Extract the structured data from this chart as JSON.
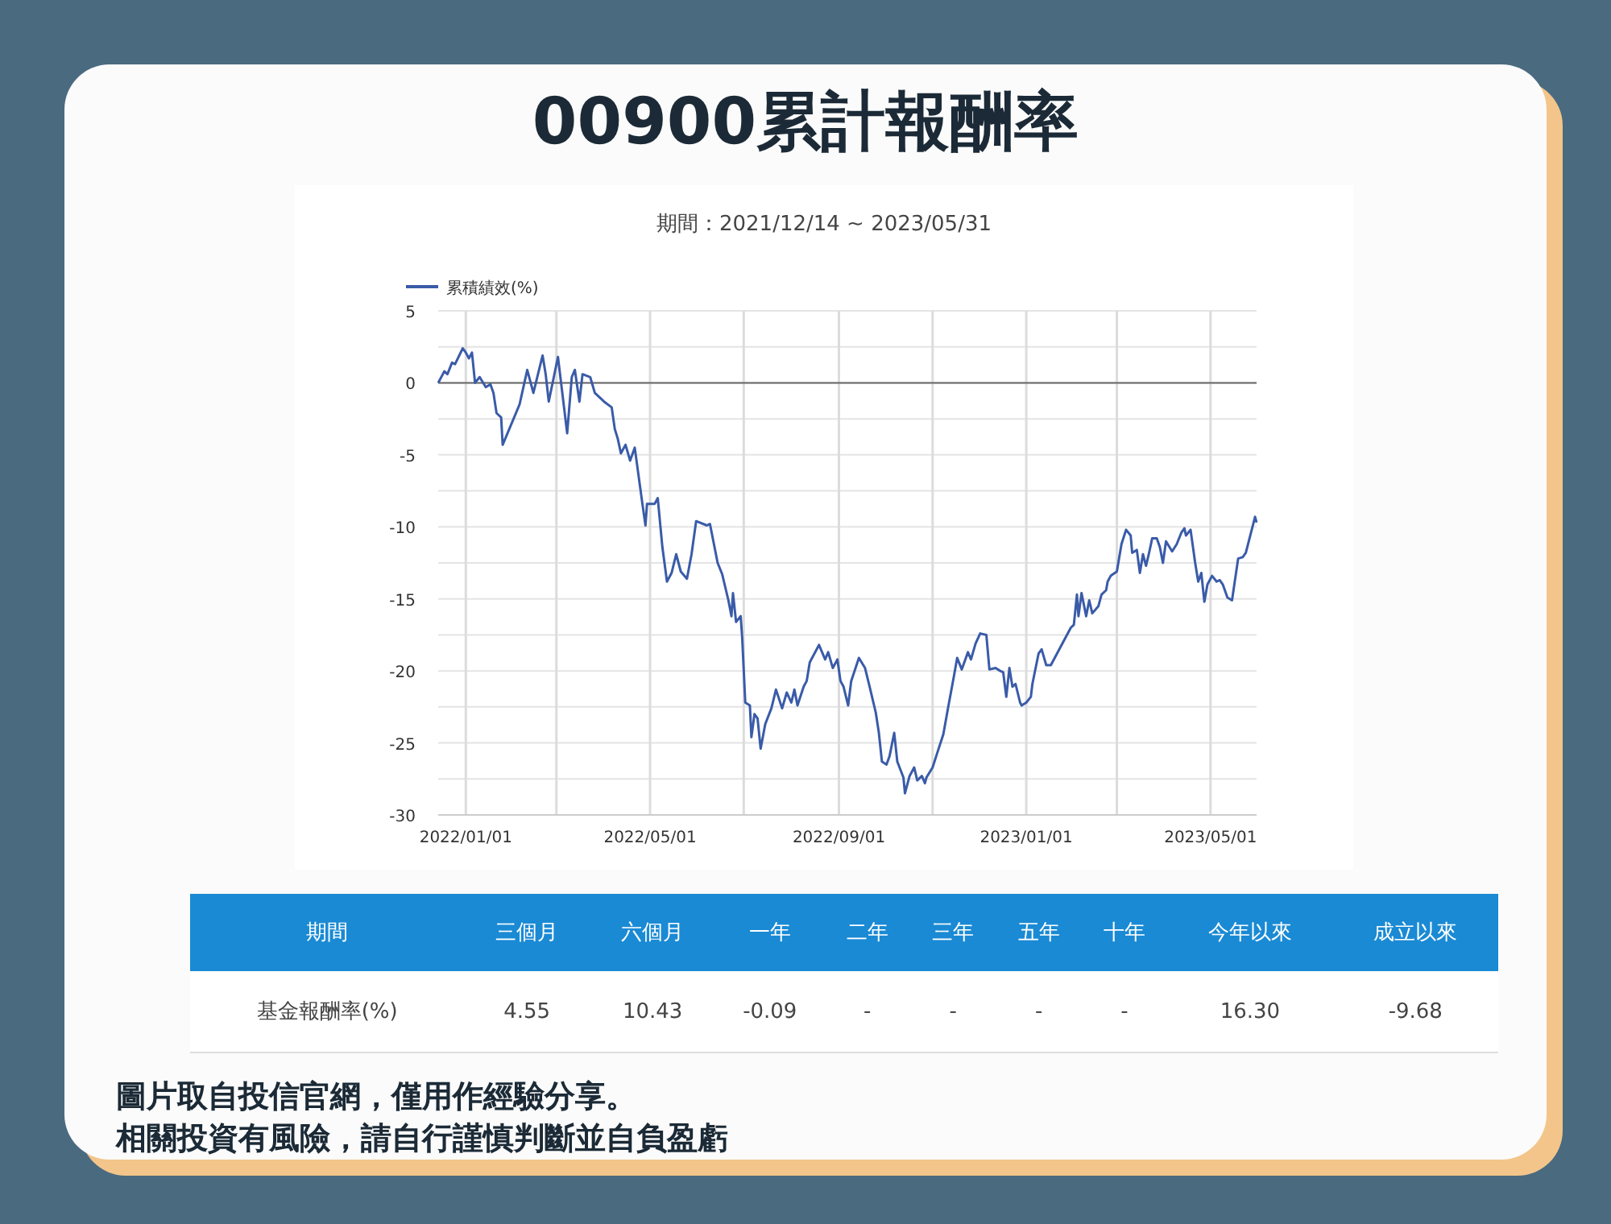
{
  "chart_data": [
    {
      "type": "line",
      "title": "00900累計報酬率",
      "subtitle": "期間：2021/12/14 ~ 2023/05/31",
      "annotations": [
        "圖片取自投信官網，僅用作經驗分享。",
        "相關投資有風險，請自行謹慎判斷並自負盈虧"
      ],
      "legend": "top left",
      "grid": true,
      "xlim": [
        "2021-12-14",
        "2023-05-31"
      ],
      "xticks": [
        {
          "value": "2022-01-01",
          "label": "2022/01/01"
        },
        {
          "value": "2022-03-01",
          "label": null
        },
        {
          "value": "2022-05-01",
          "label": "2022/05/01"
        },
        {
          "value": "2022-07-01",
          "label": null
        },
        {
          "value": "2022-09-01",
          "label": "2022/09/01"
        },
        {
          "value": "2022-11-01",
          "label": null
        },
        {
          "value": "2023-01-01",
          "label": "2023/01/01"
        },
        {
          "value": "2023-03-01",
          "label": null
        },
        {
          "value": "2023-05-01",
          "label": "2023/05/01"
        }
      ],
      "ylim": [
        -30,
        5
      ],
      "yticks": [
        -30,
        {
          "value": -27.5,
          "label": null
        },
        -25,
        {
          "value": -22.5,
          "label": null
        },
        -20,
        {
          "value": -17.5,
          "label": null
        },
        -15,
        {
          "value": -12.5,
          "label": null
        },
        -10,
        {
          "value": -7.5,
          "label": null
        },
        -5,
        {
          "value": -2.5,
          "label": null
        },
        0,
        {
          "value": 2.5,
          "label": null
        },
        5
      ],
      "ref_lines": [
        {
          "axis": "y",
          "value": 0,
          "color": "#666666"
        }
      ],
      "x": [
        "2021-12-14",
        "2021-12-18",
        "2021-12-20",
        "2021-12-23",
        "2021-12-25",
        "2021-12-30",
        "2022-01-01",
        "2022-01-03",
        "2022-01-05",
        "2022-01-07",
        "2022-01-10",
        "2022-01-14",
        "2022-01-17",
        "2022-01-19",
        "2022-01-21",
        "2022-01-24",
        "2022-01-25",
        "2022-02-05",
        "2022-02-10",
        "2022-02-14",
        "2022-02-20",
        "2022-02-22",
        "2022-02-24",
        "2022-03-02",
        "2022-03-08",
        "2022-03-11",
        "2022-03-13",
        "2022-03-16",
        "2022-03-18",
        "2022-03-23",
        "2022-03-26",
        "2022-04-01",
        "2022-04-06",
        "2022-04-08",
        "2022-04-10",
        "2022-04-12",
        "2022-04-15",
        "2022-04-18",
        "2022-04-21",
        "2022-04-26",
        "2022-04-28",
        "2022-04-29",
        "2022-05-04",
        "2022-05-06",
        "2022-05-09",
        "2022-05-12",
        "2022-05-15",
        "2022-05-18",
        "2022-05-21",
        "2022-05-25",
        "2022-05-28",
        "2022-05-31",
        "2022-06-07",
        "2022-06-09",
        "2022-06-14",
        "2022-06-17",
        "2022-06-21",
        "2022-06-23",
        "2022-06-24",
        "2022-06-26",
        "2022-06-29",
        "2022-06-30",
        "2022-07-02",
        "2022-07-05",
        "2022-07-06",
        "2022-07-08",
        "2022-07-10",
        "2022-07-12",
        "2022-07-15",
        "2022-07-19",
        "2022-07-22",
        "2022-07-26",
        "2022-07-29",
        "2022-08-01",
        "2022-08-03",
        "2022-08-05",
        "2022-08-09",
        "2022-08-11",
        "2022-08-13",
        "2022-08-19",
        "2022-08-23",
        "2022-08-25",
        "2022-08-28",
        "2022-08-31",
        "2022-09-02",
        "2022-09-04",
        "2022-09-07",
        "2022-09-09",
        "2022-09-14",
        "2022-09-18",
        "2022-09-21",
        "2022-09-25",
        "2022-09-27",
        "2022-09-29",
        "2022-10-02",
        "2022-10-04",
        "2022-10-07",
        "2022-10-09",
        "2022-10-13",
        "2022-10-14",
        "2022-10-17",
        "2022-10-20",
        "2022-10-22",
        "2022-10-25",
        "2022-10-27",
        "2022-10-28",
        "2022-11-01",
        "2022-11-04",
        "2022-11-08",
        "2022-11-11",
        "2022-11-15",
        "2022-11-17",
        "2022-11-20",
        "2022-11-24",
        "2022-11-26",
        "2022-11-29",
        "2022-12-02",
        "2022-12-06",
        "2022-12-08",
        "2022-12-12",
        "2022-12-15",
        "2022-12-17",
        "2022-12-19",
        "2022-12-21",
        "2022-12-23",
        "2022-12-25",
        "2022-12-28",
        "2022-12-29",
        "2023-01-01",
        "2023-01-04",
        "2023-01-05",
        "2023-01-09",
        "2023-01-11",
        "2023-01-14",
        "2023-01-17",
        "2023-01-30",
        "2023-02-01",
        "2023-02-03",
        "2023-02-04",
        "2023-02-06",
        "2023-02-09",
        "2023-02-11",
        "2023-02-13",
        "2023-02-17",
        "2023-02-19",
        "2023-02-22",
        "2023-02-23",
        "2023-02-25",
        "2023-03-01",
        "2023-03-04",
        "2023-03-07",
        "2023-03-10",
        "2023-03-11",
        "2023-03-14",
        "2023-03-16",
        "2023-03-18",
        "2023-03-20",
        "2023-03-22",
        "2023-03-24",
        "2023-03-27",
        "2023-03-29",
        "2023-03-31",
        "2023-04-02",
        "2023-04-06",
        "2023-04-09",
        "2023-04-12",
        "2023-04-14",
        "2023-04-15",
        "2023-04-18",
        "2023-04-21",
        "2023-04-23",
        "2023-04-25",
        "2023-04-27",
        "2023-04-29",
        "2023-05-02",
        "2023-05-05",
        "2023-05-07",
        "2023-05-09",
        "2023-05-12",
        "2023-05-15",
        "2023-05-19",
        "2023-05-22",
        "2023-05-24",
        "2023-05-30",
        "2023-05-31"
      ],
      "series": [
        {
          "name": "累積績效(%)",
          "color": "#3a5ba8",
          "values": [
            0,
            0.8,
            0.6,
            1.4,
            1.3,
            2.4,
            2.1,
            1.7,
            2.1,
            0,
            0.4,
            -0.3,
            -0.1,
            -0.7,
            -2.1,
            -2.4,
            -4.3,
            -1.5,
            0.9,
            -0.7,
            1.9,
            0.6,
            -1.3,
            1.8,
            -3.5,
            0.4,
            0.9,
            -1.3,
            0.6,
            0.4,
            -0.7,
            -1.3,
            -1.7,
            -3.2,
            -3.9,
            -4.9,
            -4.3,
            -5.4,
            -4.5,
            -8.4,
            -9.9,
            -8.4,
            -8.4,
            -8.0,
            -11.4,
            -13.8,
            -13.2,
            -11.9,
            -13.1,
            -13.6,
            -11.9,
            -9.6,
            -9.9,
            -9.8,
            -12.5,
            -13.3,
            -15.1,
            -16.2,
            -14.6,
            -16.6,
            -16.2,
            -17.7,
            -22.2,
            -22.4,
            -24.6,
            -23.0,
            -23.3,
            -25.4,
            -23.7,
            -22.6,
            -21.3,
            -22.6,
            -21.5,
            -22.2,
            -21.3,
            -22.4,
            -21.1,
            -20.7,
            -19.4,
            -18.2,
            -19.2,
            -18.7,
            -19.8,
            -19.2,
            -20.7,
            -21.1,
            -22.4,
            -20.7,
            -19.1,
            -19.8,
            -21.1,
            -22.9,
            -24.3,
            -26.3,
            -26.5,
            -25.9,
            -24.3,
            -26.3,
            -27.4,
            -28.5,
            -27.3,
            -26.7,
            -27.6,
            -27.3,
            -27.8,
            -27.4,
            -26.7,
            -25.7,
            -24.4,
            -22.6,
            -20.3,
            -19.1,
            -19.9,
            -18.7,
            -19.2,
            -18.1,
            -17.4,
            -17.5,
            -19.9,
            -19.8,
            -20.0,
            -20.1,
            -21.8,
            -19.8,
            -21.1,
            -20.9,
            -22.2,
            -22.4,
            -22.2,
            -21.8,
            -20.9,
            -18.8,
            -18.5,
            -19.6,
            -19.6,
            -17.0,
            -16.8,
            -14.7,
            -16.2,
            -14.6,
            -16.2,
            -15.1,
            -16.0,
            -15.5,
            -14.7,
            -14.4,
            -13.8,
            -13.4,
            -13.1,
            -11.2,
            -10.2,
            -10.6,
            -11.8,
            -11.6,
            -13.2,
            -11.9,
            -12.7,
            -11.8,
            -10.8,
            -10.8,
            -11.4,
            -12.5,
            -11.0,
            -11.7,
            -11.2,
            -10.4,
            -10.1,
            -10.6,
            -10.2,
            -12.5,
            -13.8,
            -13.2,
            -15.2,
            -14.0,
            -13.4,
            -13.8,
            -13.7,
            -14.0,
            -14.9,
            -15.1,
            -12.2,
            -12.1,
            -11.8,
            -9.3,
            -9.7
          ]
        }
      ]
    },
    {
      "type": "other",
      "xlabel": "期間",
      "ylabel": "基金報酬率(%)",
      "categories": [
        "三個月",
        "六個月",
        "一年",
        "二年",
        "三年",
        "五年",
        "十年",
        "今年以來",
        "成立以來"
      ],
      "values": [
        4.55,
        10.43,
        -0.09,
        null,
        null,
        null,
        null,
        16.3,
        -9.68
      ],
      "value_labels": [
        "4.55",
        "10.43",
        "-0.09",
        "-",
        "-",
        "-",
        "-",
        "16.30",
        "-9.68"
      ]
    }
  ]
}
